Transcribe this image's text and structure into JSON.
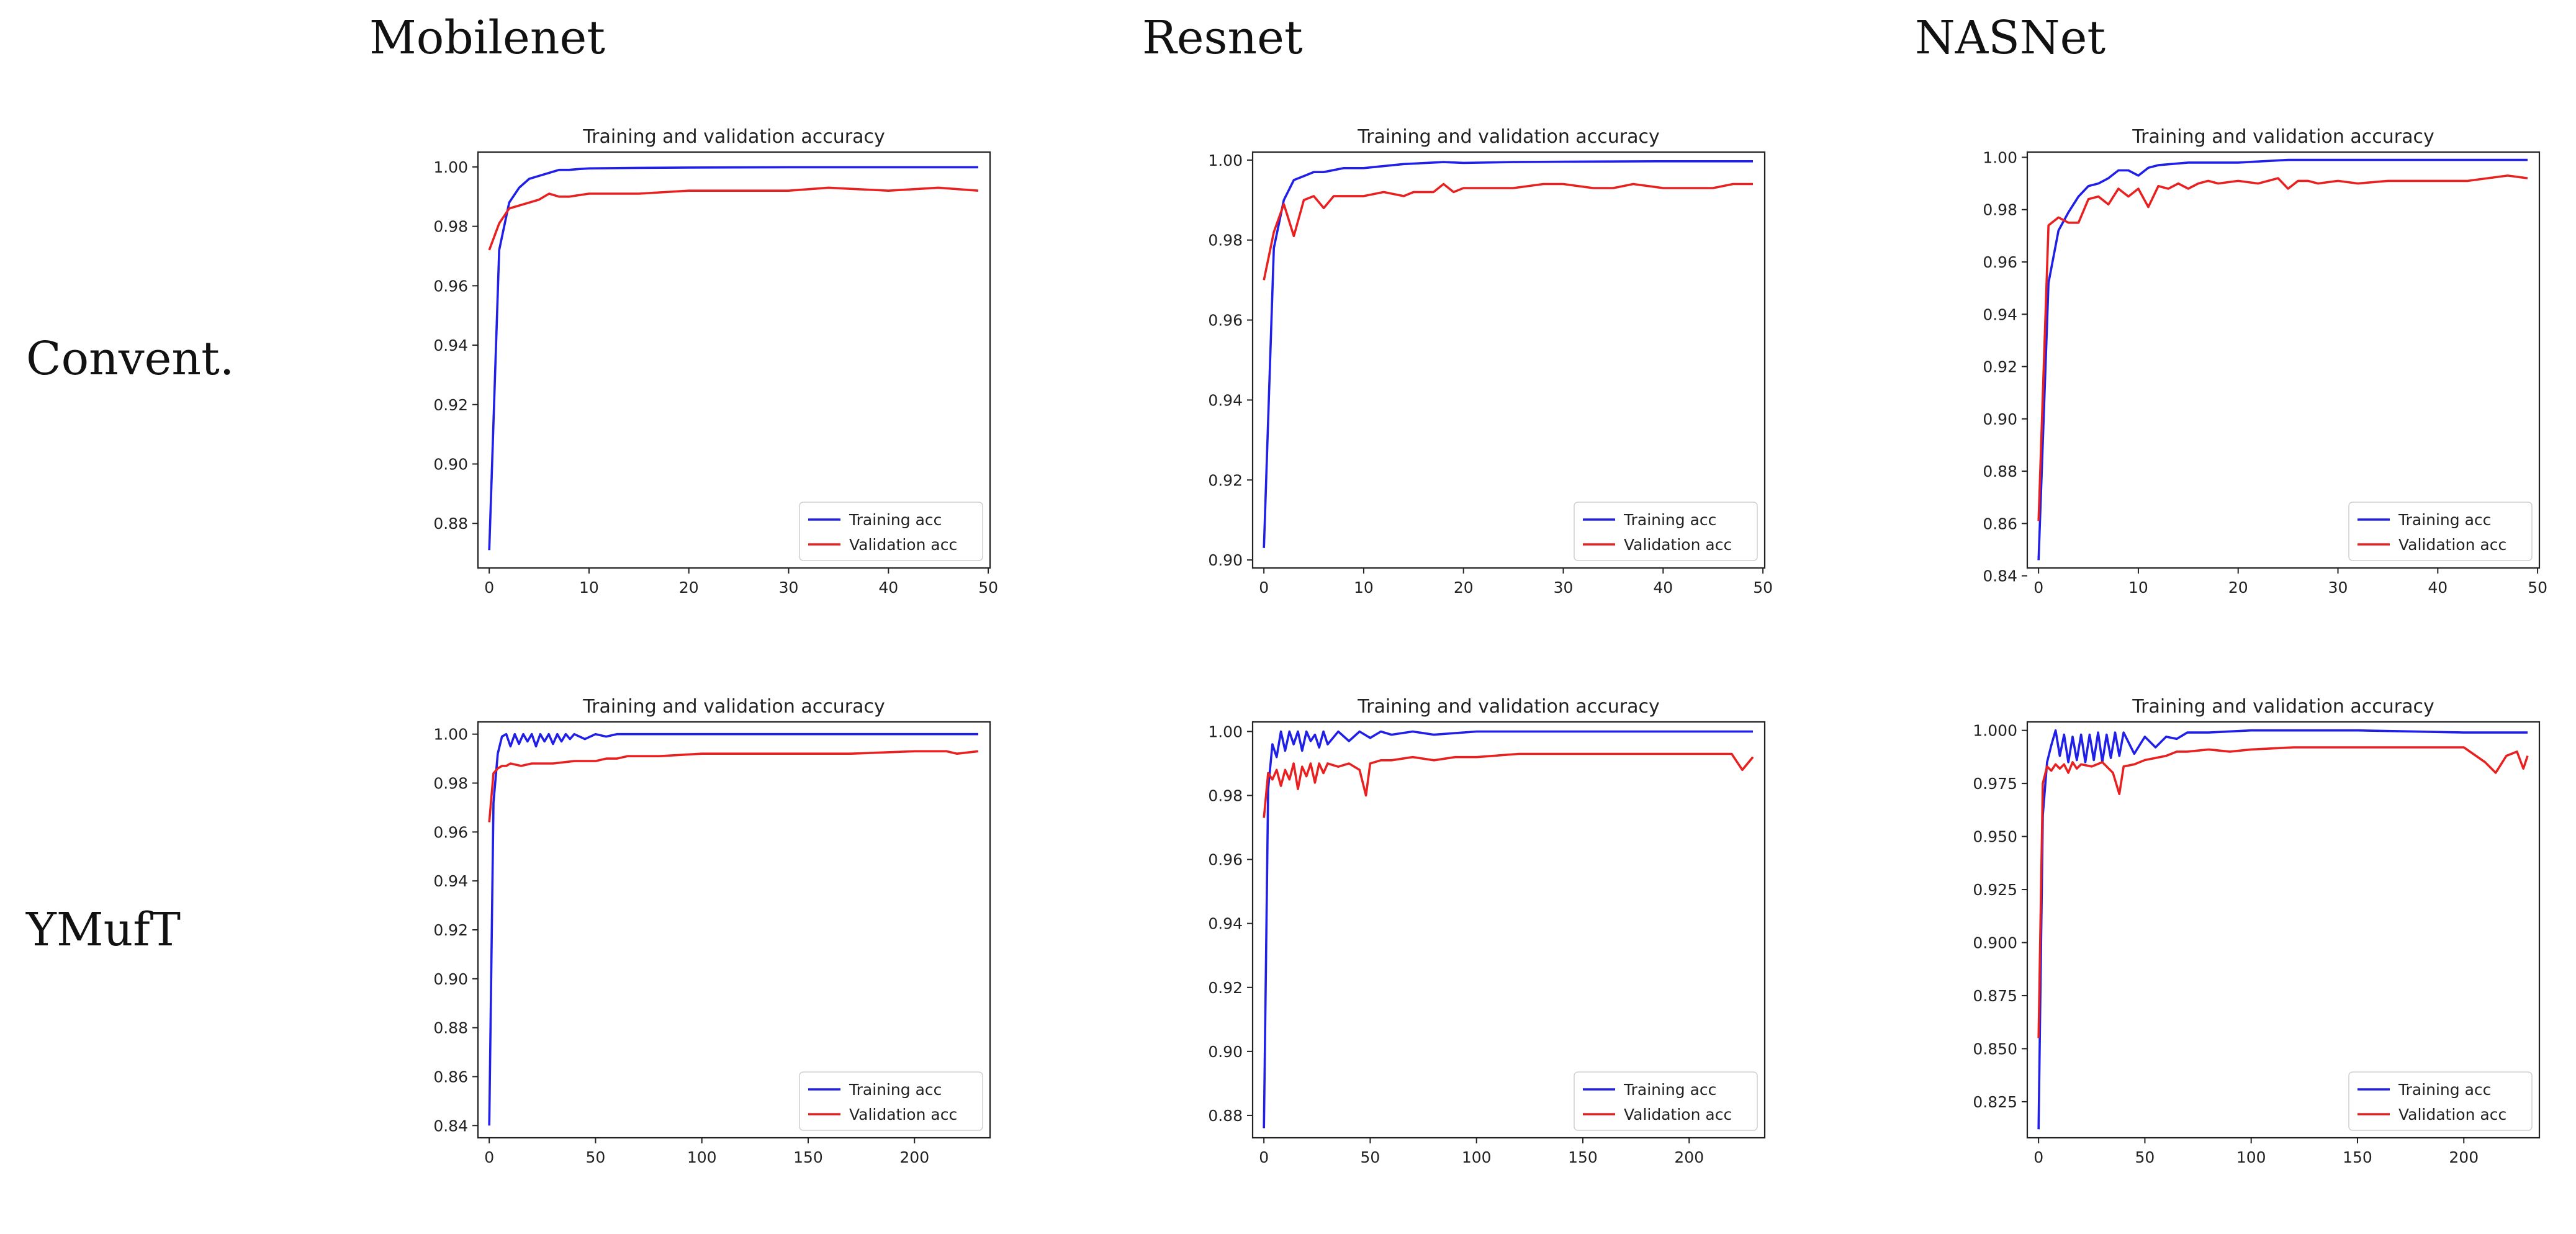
{
  "columns": [
    "Mobilenet",
    "Resnet",
    "NASNet"
  ],
  "rows": [
    "Convent.",
    "YMufT"
  ],
  "colors": {
    "training": "#1f1fe8",
    "validation": "#e82020"
  },
  "chart_data": [
    {
      "type": "line",
      "title": "Training and validation accuracy",
      "xlabel": "",
      "ylabel": "",
      "xlim": [
        0,
        49
      ],
      "ylim": [
        0.865,
        1.005
      ],
      "legend": "lower-right",
      "xticks": [
        0,
        10,
        20,
        30,
        40,
        50
      ],
      "yticks": [
        "0.88",
        "0.90",
        "0.92",
        "0.94",
        "0.96",
        "0.98",
        "1.00"
      ],
      "series": [
        {
          "name": "Training acc",
          "x": [
            0,
            1,
            2,
            3,
            4,
            5,
            6,
            7,
            8,
            9,
            10,
            15,
            20,
            30,
            40,
            49
          ],
          "values": [
            0.871,
            0.972,
            0.988,
            0.993,
            0.996,
            0.997,
            0.998,
            0.999,
            0.999,
            0.9993,
            0.9995,
            0.9997,
            0.9998,
            0.9999,
            0.9999,
            0.9999
          ]
        },
        {
          "name": "Validation acc",
          "x": [
            0,
            1,
            2,
            3,
            4,
            5,
            6,
            7,
            8,
            10,
            12,
            15,
            20,
            25,
            30,
            34,
            40,
            45,
            49
          ],
          "values": [
            0.972,
            0.981,
            0.986,
            0.987,
            0.988,
            0.989,
            0.991,
            0.99,
            0.99,
            0.991,
            0.991,
            0.991,
            0.992,
            0.992,
            0.992,
            0.993,
            0.992,
            0.993,
            0.992
          ]
        }
      ]
    },
    {
      "type": "line",
      "title": "Training and validation accuracy",
      "xlabel": "",
      "ylabel": "",
      "xlim": [
        0,
        49
      ],
      "ylim": [
        0.898,
        1.002
      ],
      "legend": "lower-right",
      "xticks": [
        0,
        10,
        20,
        30,
        40,
        50
      ],
      "yticks": [
        "0.90",
        "0.92",
        "0.94",
        "0.96",
        "0.98",
        "1.00"
      ],
      "series": [
        {
          "name": "Training acc",
          "x": [
            0,
            1,
            2,
            3,
            4,
            5,
            6,
            8,
            10,
            14,
            18,
            20,
            25,
            30,
            40,
            49
          ],
          "values": [
            0.903,
            0.978,
            0.99,
            0.995,
            0.996,
            0.997,
            0.997,
            0.998,
            0.998,
            0.999,
            0.9995,
            0.9993,
            0.9995,
            0.9996,
            0.9997,
            0.9997
          ]
        },
        {
          "name": "Validation acc",
          "x": [
            0,
            1,
            2,
            3,
            4,
            5,
            6,
            7,
            8,
            10,
            12,
            14,
            15,
            17,
            18,
            19,
            20,
            22,
            25,
            28,
            30,
            33,
            35,
            37,
            40,
            42,
            45,
            47,
            49
          ],
          "values": [
            0.97,
            0.982,
            0.989,
            0.981,
            0.99,
            0.991,
            0.988,
            0.991,
            0.991,
            0.991,
            0.992,
            0.991,
            0.992,
            0.992,
            0.994,
            0.992,
            0.993,
            0.993,
            0.993,
            0.994,
            0.994,
            0.993,
            0.993,
            0.994,
            0.993,
            0.993,
            0.993,
            0.994,
            0.994
          ]
        }
      ]
    },
    {
      "type": "line",
      "title": "Training and validation accuracy",
      "xlabel": "",
      "ylabel": "",
      "xlim": [
        0,
        49
      ],
      "ylim": [
        0.843,
        1.002
      ],
      "legend": "lower-right",
      "xticks": [
        0,
        10,
        20,
        30,
        40,
        50
      ],
      "yticks": [
        "0.84",
        "0.86",
        "0.88",
        "0.90",
        "0.92",
        "0.94",
        "0.96",
        "0.98",
        "1.00"
      ],
      "series": [
        {
          "name": "Training acc",
          "x": [
            0,
            1,
            2,
            3,
            4,
            5,
            6,
            7,
            8,
            9,
            10,
            11,
            12,
            15,
            20,
            25,
            30,
            40,
            49
          ],
          "values": [
            0.846,
            0.952,
            0.972,
            0.979,
            0.985,
            0.989,
            0.99,
            0.992,
            0.995,
            0.995,
            0.993,
            0.996,
            0.997,
            0.998,
            0.998,
            0.999,
            0.999,
            0.999,
            0.999
          ]
        },
        {
          "name": "Validation acc",
          "x": [
            0,
            1,
            2,
            3,
            4,
            5,
            6,
            7,
            8,
            9,
            10,
            11,
            12,
            13,
            14,
            15,
            16,
            17,
            18,
            20,
            22,
            24,
            25,
            26,
            27,
            28,
            30,
            32,
            35,
            38,
            40,
            43,
            45,
            47,
            49
          ],
          "values": [
            0.861,
            0.974,
            0.977,
            0.975,
            0.975,
            0.984,
            0.985,
            0.982,
            0.988,
            0.985,
            0.988,
            0.981,
            0.989,
            0.988,
            0.99,
            0.988,
            0.99,
            0.991,
            0.99,
            0.991,
            0.99,
            0.992,
            0.988,
            0.991,
            0.991,
            0.99,
            0.991,
            0.99,
            0.991,
            0.991,
            0.991,
            0.991,
            0.992,
            0.993,
            0.992
          ]
        }
      ]
    },
    {
      "type": "line",
      "title": "Training and validation accuracy",
      "xlabel": "",
      "ylabel": "",
      "xlim": [
        0,
        230
      ],
      "ylim": [
        0.835,
        1.005
      ],
      "legend": "lower-right",
      "xticks": [
        0,
        50,
        100,
        150,
        200
      ],
      "yticks": [
        "0.84",
        "0.86",
        "0.88",
        "0.90",
        "0.92",
        "0.94",
        "0.96",
        "0.98",
        "1.00"
      ],
      "series": [
        {
          "name": "Training acc",
          "x": [
            0,
            2,
            4,
            6,
            8,
            10,
            12,
            14,
            16,
            18,
            20,
            22,
            24,
            26,
            28,
            30,
            32,
            34,
            36,
            38,
            40,
            45,
            50,
            55,
            60,
            70,
            80,
            100,
            150,
            200,
            230
          ],
          "values": [
            0.84,
            0.972,
            0.992,
            0.999,
            1.0,
            0.995,
            1.0,
            0.996,
            1.0,
            0.997,
            1.0,
            0.995,
            1.0,
            0.997,
            1.0,
            0.996,
            1.0,
            0.997,
            1.0,
            0.998,
            1.0,
            0.998,
            1.0,
            0.999,
            1.0,
            1.0,
            1.0,
            1.0,
            1.0,
            1.0,
            1.0
          ]
        },
        {
          "name": "Validation acc",
          "x": [
            0,
            2,
            4,
            6,
            8,
            10,
            15,
            20,
            30,
            40,
            50,
            55,
            60,
            65,
            70,
            80,
            100,
            120,
            150,
            170,
            200,
            215,
            220,
            230
          ],
          "values": [
            0.964,
            0.984,
            0.986,
            0.987,
            0.987,
            0.988,
            0.987,
            0.988,
            0.988,
            0.989,
            0.989,
            0.99,
            0.99,
            0.991,
            0.991,
            0.991,
            0.992,
            0.992,
            0.992,
            0.992,
            0.993,
            0.993,
            0.992,
            0.993
          ]
        }
      ]
    },
    {
      "type": "line",
      "title": "Training and validation accuracy",
      "xlabel": "",
      "ylabel": "",
      "xlim": [
        0,
        230
      ],
      "ylim": [
        0.873,
        1.003
      ],
      "legend": "lower-right",
      "xticks": [
        0,
        50,
        100,
        150,
        200
      ],
      "yticks": [
        "0.88",
        "0.90",
        "0.92",
        "0.94",
        "0.96",
        "0.98",
        "1.00"
      ],
      "series": [
        {
          "name": "Training acc",
          "x": [
            0,
            2,
            4,
            6,
            8,
            10,
            12,
            14,
            16,
            18,
            20,
            22,
            24,
            26,
            28,
            30,
            35,
            40,
            45,
            50,
            55,
            60,
            70,
            80,
            100,
            120,
            150,
            200,
            230
          ],
          "values": [
            0.876,
            0.982,
            0.996,
            0.992,
            1.0,
            0.994,
            1.0,
            0.996,
            1.0,
            0.994,
            1.0,
            0.997,
            0.999,
            0.995,
            1.0,
            0.996,
            1.0,
            0.997,
            1.0,
            0.998,
            1.0,
            0.999,
            1.0,
            0.999,
            1.0,
            1.0,
            1.0,
            1.0,
            1.0
          ]
        },
        {
          "name": "Validation acc",
          "x": [
            0,
            2,
            4,
            6,
            8,
            10,
            12,
            14,
            16,
            18,
            20,
            22,
            24,
            26,
            28,
            30,
            35,
            40,
            45,
            48,
            50,
            55,
            60,
            70,
            80,
            90,
            100,
            120,
            150,
            180,
            200,
            220,
            225,
            230
          ],
          "values": [
            0.973,
            0.987,
            0.985,
            0.988,
            0.983,
            0.988,
            0.985,
            0.99,
            0.982,
            0.989,
            0.986,
            0.99,
            0.984,
            0.99,
            0.987,
            0.99,
            0.989,
            0.99,
            0.988,
            0.98,
            0.99,
            0.991,
            0.991,
            0.992,
            0.991,
            0.992,
            0.992,
            0.993,
            0.993,
            0.993,
            0.993,
            0.993,
            0.988,
            0.992
          ]
        }
      ]
    },
    {
      "type": "line",
      "title": "Training and validation accuracy",
      "xlabel": "",
      "ylabel": "",
      "xlim": [
        0,
        230
      ],
      "ylim": [
        0.808,
        1.004
      ],
      "legend": "lower-right",
      "xticks": [
        0,
        50,
        100,
        150,
        200
      ],
      "yticks": [
        "0.825",
        "0.850",
        "0.875",
        "0.900",
        "0.925",
        "0.950",
        "0.975",
        "1.000"
      ],
      "series": [
        {
          "name": "Training acc",
          "x": [
            0,
            2,
            4,
            6,
            8,
            10,
            12,
            14,
            16,
            18,
            20,
            22,
            24,
            26,
            28,
            30,
            32,
            34,
            36,
            38,
            40,
            45,
            50,
            55,
            60,
            65,
            70,
            80,
            100,
            150,
            200,
            230
          ],
          "values": [
            0.812,
            0.96,
            0.985,
            0.993,
            1.0,
            0.988,
            0.998,
            0.985,
            0.997,
            0.986,
            0.998,
            0.985,
            0.998,
            0.986,
            0.999,
            0.985,
            0.998,
            0.987,
            0.999,
            0.988,
            0.999,
            0.989,
            0.997,
            0.992,
            0.997,
            0.996,
            0.999,
            0.999,
            1.0,
            1.0,
            0.999,
            0.999
          ]
        },
        {
          "name": "Validation acc",
          "x": [
            0,
            2,
            4,
            6,
            8,
            10,
            12,
            14,
            16,
            18,
            20,
            25,
            30,
            35,
            38,
            40,
            45,
            50,
            55,
            60,
            65,
            70,
            80,
            90,
            100,
            120,
            150,
            180,
            200,
            210,
            215,
            220,
            225,
            228,
            230
          ],
          "values": [
            0.855,
            0.975,
            0.983,
            0.981,
            0.984,
            0.982,
            0.984,
            0.98,
            0.985,
            0.982,
            0.984,
            0.983,
            0.985,
            0.98,
            0.97,
            0.983,
            0.984,
            0.986,
            0.987,
            0.988,
            0.99,
            0.99,
            0.991,
            0.99,
            0.991,
            0.992,
            0.992,
            0.992,
            0.992,
            0.985,
            0.98,
            0.988,
            0.99,
            0.982,
            0.988
          ]
        }
      ]
    }
  ]
}
